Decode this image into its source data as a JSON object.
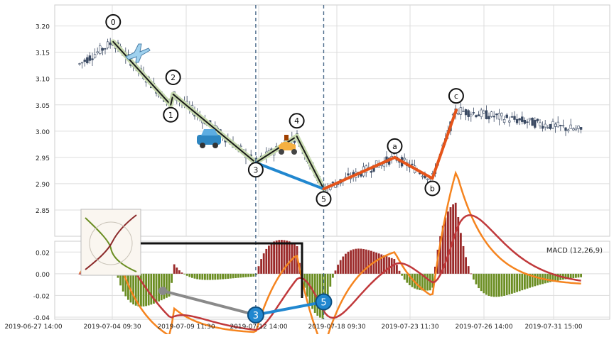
{
  "chart_data": [
    {
      "type": "candlestick",
      "panel": "price",
      "ylim": [
        2.8,
        3.24
      ],
      "y_ticks": [
        "2.85",
        "2.90",
        "2.95",
        "3.00",
        "3.05",
        "3.10",
        "3.15",
        "3.20"
      ],
      "grid": true,
      "wave_points": [
        {
          "label": "0",
          "date": "2019-07-04 11:00",
          "value": 3.17
        },
        {
          "label": "1",
          "date": "2019-07-08 10:00",
          "value": 3.05
        },
        {
          "label": "2",
          "date": "2019-07-08 14:00",
          "value": 3.07
        },
        {
          "label": "3",
          "date": "2019-07-12 11:00",
          "value": 2.94
        },
        {
          "label": "4",
          "date": "2019-07-15 10:00",
          "value": 2.99
        },
        {
          "label": "5",
          "date": "2019-07-17 10:00",
          "value": 2.89
        },
        {
          "label": "a",
          "date": "2019-07-22 10:00",
          "value": 2.95
        },
        {
          "label": "b",
          "date": "2019-07-24 10:00",
          "value": 2.91
        },
        {
          "label": "c",
          "date": "2019-07-25 10:00",
          "value": 3.04
        }
      ],
      "icons": [
        "airplane-icon",
        "car-icon",
        "scooter-icon"
      ],
      "vertical_markers": [
        "2019-07-12 11:00",
        "2019-07-17 10:00"
      ]
    },
    {
      "type": "bar+line",
      "panel": "macd",
      "legend": "MACD (12,26,9)",
      "legend_position": "top-right",
      "ylim": [
        -0.042,
        0.03
      ],
      "y_ticks": [
        "-0.04",
        "-0.02",
        "0.00",
        "0.02"
      ],
      "x_tick_labels": [
        "2019-06-27 14:00",
        "2019-07-04 09:30",
        "2019-07-09 11:30",
        "2019-07-12 14:00",
        "2019-07-18 09:30",
        "2019-07-23 11:30",
        "2019-07-26 14:00",
        "2019-07-31 15:00"
      ],
      "markers": [
        {
          "label": "3",
          "date": "2019-07-12 11:00",
          "value": -0.038
        },
        {
          "label": "5",
          "date": "2019-07-17 10:00",
          "value": -0.026
        }
      ],
      "colors": {
        "macd_line": "#f5841f",
        "signal_line": "#c0393b",
        "hist_positive": "#9b2a2a",
        "hist_negative": "#6b8e23",
        "wave_down": "#1a1a1a",
        "wave_blue": "#2187cf",
        "wave_correction": "#e5541a"
      }
    }
  ]
}
